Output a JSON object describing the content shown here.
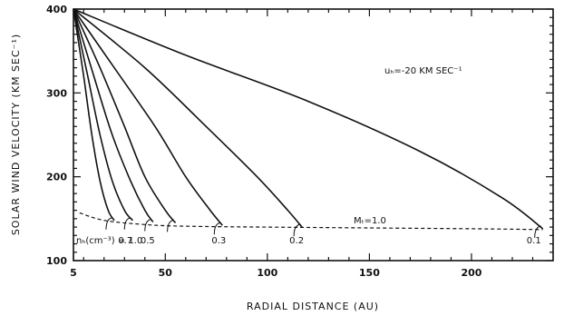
{
  "chart_data": {
    "type": "line",
    "xlabel": "RADIAL DISTANCE (AU)",
    "ylabel": "SOLAR WIND VELOCITY (KM SEC⁻¹)",
    "xlim": [
      5,
      240
    ],
    "ylim": [
      100,
      400
    ],
    "xticks": [
      5,
      50,
      100,
      150,
      200
    ],
    "yticks": [
      100,
      200,
      300,
      400
    ],
    "xtick_labels": [
      "5",
      "50",
      "100",
      "150",
      "200"
    ],
    "ytick_labels": [
      "100",
      "200",
      "300",
      "400"
    ],
    "annotations": {
      "uH": "uₕ=-20 KM SEC⁻¹",
      "mt": "Mₜ=1.0",
      "nh_prefix": "nₕ(cm⁻³) = 1.0",
      "labels": [
        "0.7",
        "0.5",
        "0.3",
        "0.2",
        "0.1"
      ]
    },
    "series": [
      {
        "x": [
          5,
          10,
          14,
          18,
          22,
          25
        ],
        "y": [
          400,
          320,
          250,
          195,
          160,
          148
        ]
      },
      {
        "x": [
          5,
          12,
          18,
          24,
          30,
          34
        ],
        "y": [
          400,
          320,
          250,
          195,
          160,
          148
        ]
      },
      {
        "x": [
          5,
          15,
          24,
          33,
          40,
          44
        ],
        "y": [
          400,
          320,
          250,
          195,
          160,
          146
        ]
      },
      {
        "x": [
          5,
          18,
          30,
          40,
          50,
          55
        ],
        "y": [
          400,
          330,
          260,
          200,
          160,
          145
        ]
      },
      {
        "x": [
          5,
          25,
          45,
          60,
          72,
          78
        ],
        "y": [
          400,
          330,
          260,
          200,
          160,
          142
        ]
      },
      {
        "x": [
          5,
          40,
          70,
          95,
          110,
          117
        ],
        "y": [
          400,
          330,
          260,
          200,
          160,
          140
        ]
      },
      {
        "x": [
          5,
          60,
          120,
          175,
          215,
          235
        ],
        "y": [
          400,
          345,
          290,
          230,
          175,
          138
        ]
      }
    ],
    "threshold": {
      "x": [
        8,
        20,
        40,
        60,
        100,
        150,
        200,
        235
      ],
      "y": [
        157,
        148,
        143,
        141,
        140,
        139,
        138,
        137
      ]
    }
  }
}
